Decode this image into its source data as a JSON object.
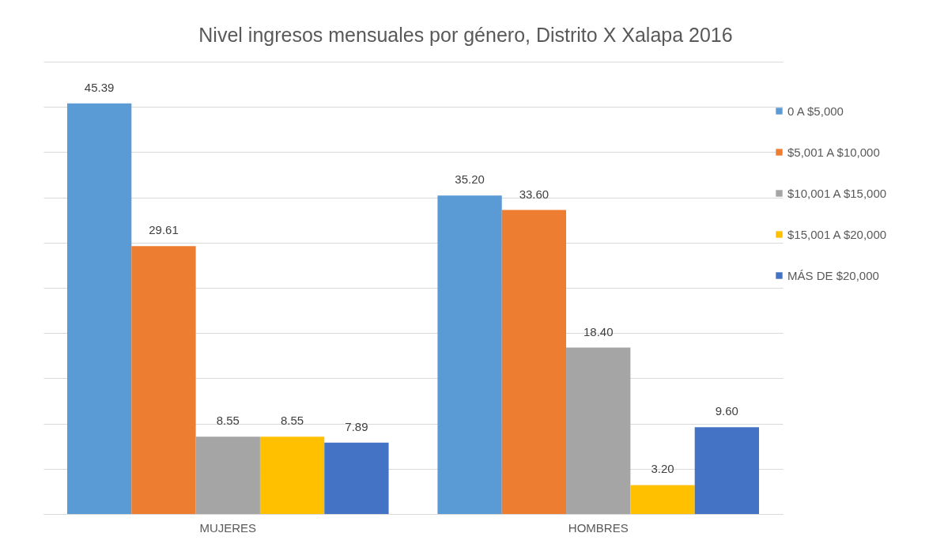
{
  "chart_data": {
    "type": "bar",
    "title": "Nivel ingresos mensuales por género, Distrito X Xalapa 2016",
    "categories": [
      "MUJERES",
      "HOMBRES"
    ],
    "series": [
      {
        "name": "0 A $5,000",
        "color": "#5b9bd5",
        "values": [
          45.39,
          35.2
        ],
        "value_labels": [
          "45.39",
          "35.20"
        ]
      },
      {
        "name": "$5,001 A $10,000",
        "color": "#ed7d31",
        "values": [
          29.61,
          33.6
        ],
        "value_labels": [
          "29.61",
          "33.60"
        ]
      },
      {
        "name": "$10,001 A $15,000",
        "color": "#a5a5a5",
        "values": [
          8.55,
          18.4
        ],
        "value_labels": [
          "8.55",
          "18.40"
        ]
      },
      {
        "name": "$15,001 A $20,000",
        "color": "#ffc000",
        "values": [
          8.55,
          3.2
        ],
        "value_labels": [
          "8.55",
          "3.20"
        ]
      },
      {
        "name": "MÁS DE $20,000",
        "color": "#4472c4",
        "values": [
          7.89,
          9.6
        ],
        "value_labels": [
          "7.89",
          "9.60"
        ]
      }
    ],
    "ylim": [
      0,
      50
    ],
    "yticks": [
      {
        "value": 0,
        "label": null
      },
      {
        "value": 5,
        "label": null
      },
      {
        "value": 10,
        "label": null
      },
      {
        "value": 15,
        "label": null
      },
      {
        "value": 20,
        "label": null
      },
      {
        "value": 25,
        "label": null
      },
      {
        "value": 30,
        "label": null
      },
      {
        "value": 35,
        "label": null
      },
      {
        "value": 40,
        "label": null
      },
      {
        "value": 45,
        "label": null
      },
      {
        "value": 50,
        "label": null
      }
    ],
    "tick_labels": "x",
    "grid": "y",
    "legend": "right"
  }
}
